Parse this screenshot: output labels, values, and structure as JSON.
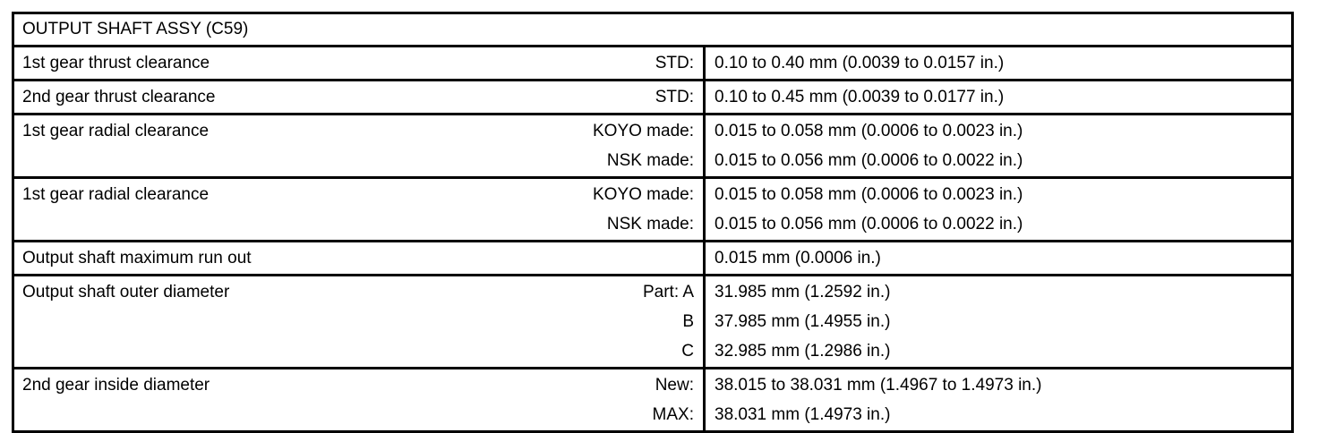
{
  "table": {
    "title": "OUTPUT SHAFT ASSY (C59)",
    "rows": [
      {
        "label": "1st gear thrust clearance",
        "conditions": [
          "STD:"
        ],
        "values": [
          "0.10 to 0.40 mm (0.0039 to 0.0157 in.)"
        ]
      },
      {
        "label": "2nd gear thrust clearance",
        "conditions": [
          "STD:"
        ],
        "values": [
          "0.10 to 0.45 mm (0.0039 to 0.0177 in.)"
        ]
      },
      {
        "label": "1st gear radial clearance",
        "conditions": [
          "KOYO made:",
          "NSK made:"
        ],
        "values": [
          "0.015 to 0.058 mm (0.0006 to 0.0023 in.)",
          "0.015 to 0.056 mm (0.0006 to 0.0022 in.)"
        ]
      },
      {
        "label": "1st gear radial clearance",
        "conditions": [
          "KOYO made:",
          "NSK made:"
        ],
        "values": [
          "0.015 to 0.058 mm (0.0006 to 0.0023 in.)",
          "0.015 to 0.056 mm (0.0006 to 0.0022 in.)"
        ]
      },
      {
        "label": "Output shaft maximum run out",
        "conditions": [],
        "values": [
          "0.015 mm (0.0006 in.)"
        ]
      },
      {
        "label": "Output shaft outer diameter",
        "conditions": [
          "Part: A",
          "B",
          "C"
        ],
        "values": [
          "31.985 mm (1.2592 in.)",
          "37.985 mm (1.4955 in.)",
          "32.985 mm (1.2986 in.)"
        ]
      },
      {
        "label": "2nd gear inside diameter",
        "conditions": [
          "New:",
          "MAX:"
        ],
        "values": [
          "38.015 to 38.031 mm (1.4967 to 1.4973 in.)",
          "38.031 mm (1.4973 in.)"
        ]
      }
    ]
  }
}
